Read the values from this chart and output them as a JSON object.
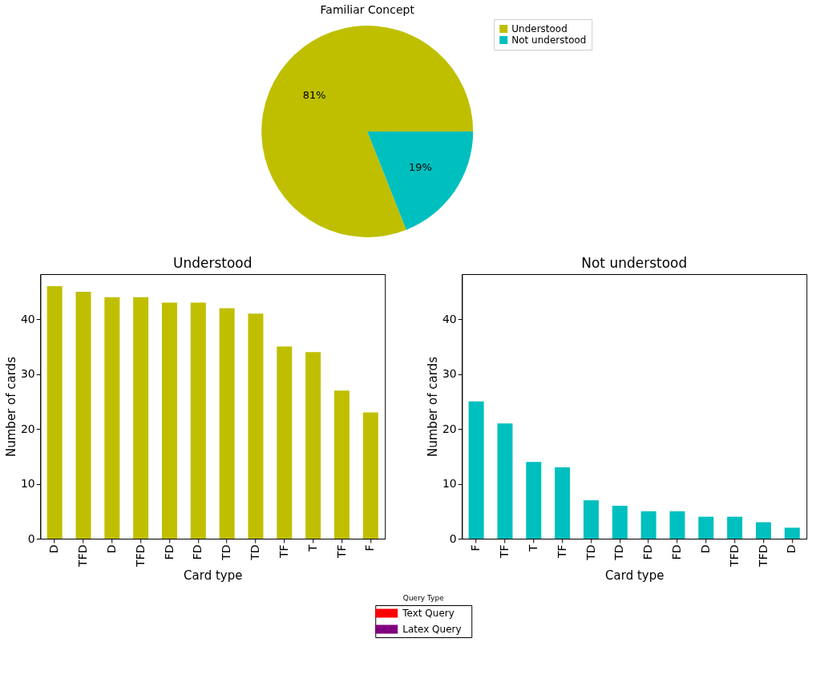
{
  "chart_data": [
    {
      "type": "pie",
      "title": "Familiar Concept",
      "categories": [
        "Understood",
        "Not understood"
      ],
      "values": [
        81,
        19
      ],
      "colors": [
        "#bfbf00",
        "#00bfbf"
      ],
      "value_labels": [
        "81%",
        "19%"
      ],
      "legend": "right"
    },
    {
      "type": "bar",
      "title": "Understood",
      "xlabel": "Card type",
      "ylabel": "Number of cards",
      "categories": [
        "D",
        "TFD",
        "D",
        "TFD",
        "FD",
        "FD",
        "TD",
        "TD",
        "TF",
        "T",
        "TF",
        "F"
      ],
      "values": [
        46,
        45,
        44,
        44,
        43,
        43,
        42,
        41,
        35,
        34,
        27,
        23
      ],
      "color": "#bfbf00",
      "ylim": [
        0,
        48.2
      ],
      "yticks": [
        0,
        10,
        20,
        30,
        40
      ],
      "grid": false
    },
    {
      "type": "bar",
      "title": "Not understood",
      "xlabel": "Card type",
      "ylabel": "Number of cards",
      "categories": [
        "F",
        "TF",
        "T",
        "TF",
        "TD",
        "TD",
        "FD",
        "FD",
        "D",
        "TFD",
        "TFD",
        "D"
      ],
      "values": [
        25,
        21,
        14,
        13,
        7,
        6,
        5,
        5,
        4,
        4,
        3,
        2
      ],
      "color": "#00bfbf",
      "ylim": [
        0,
        48.2
      ],
      "yticks": [
        0,
        10,
        20,
        30,
        40
      ],
      "grid": false
    },
    {
      "type": "other",
      "legend_title": "Query Type",
      "categories": [
        "Text Query",
        "Latex Query"
      ],
      "colors": [
        "#ff0000",
        "#800080"
      ]
    }
  ]
}
